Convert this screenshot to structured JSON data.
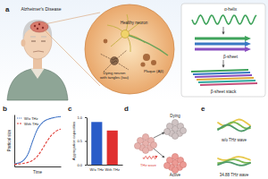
{
  "panel_labels": [
    "a",
    "b",
    "c",
    "d",
    "e"
  ],
  "a": {
    "disease": "Alzheimer's Disease",
    "healthy": "Healthy neuron",
    "dying": [
      "Dying neuron",
      "with tangles (tau)"
    ],
    "plaque": "Plaque (Aβ)",
    "structures": [
      "α-helix",
      "β-sheet",
      "β-sheet stack"
    ]
  },
  "chart_data": [
    {
      "type": "line",
      "x_label": "Time",
      "y_label": "Partical size",
      "x": [
        0,
        1,
        2,
        3,
        4,
        5,
        6,
        7,
        8,
        9,
        10
      ],
      "xlim": [
        0,
        10
      ],
      "ylim": [
        0,
        1
      ],
      "series": [
        {
          "name": "W/o THz",
          "color": "#3a6fc4",
          "line_style": "dotted",
          "values": [
            0.05,
            0.07,
            0.12,
            0.25,
            0.5,
            0.72,
            0.84,
            0.9,
            0.93,
            0.95,
            0.96
          ]
        },
        {
          "name": "With THz",
          "color": "#e0403a",
          "line_style": "dashed",
          "values": [
            0.04,
            0.05,
            0.06,
            0.08,
            0.12,
            0.2,
            0.33,
            0.48,
            0.6,
            0.68,
            0.72
          ]
        }
      ],
      "legend": "upper left",
      "tick_labels": false,
      "grid": false
    },
    {
      "type": "bar",
      "y_label": "Aggregation capacities",
      "categories": [
        "W/o THz",
        "With THz"
      ],
      "values": [
        0.9,
        0.72
      ],
      "colors": [
        "#2a5cc8",
        "#e03030"
      ],
      "ylim": [
        0,
        1
      ],
      "yticks": [
        {
          "value": 0,
          "label": "0.0"
        },
        {
          "value": 0.5,
          "label": "0.5"
        },
        {
          "value": 1,
          "label": "1.0"
        }
      ],
      "grid": false
    }
  ],
  "d": {
    "dying": "Dying",
    "active": "Active",
    "wave": "THz wave"
  },
  "e": {
    "top": "w/o THz wave",
    "bottom": "34.88 THz wave"
  }
}
